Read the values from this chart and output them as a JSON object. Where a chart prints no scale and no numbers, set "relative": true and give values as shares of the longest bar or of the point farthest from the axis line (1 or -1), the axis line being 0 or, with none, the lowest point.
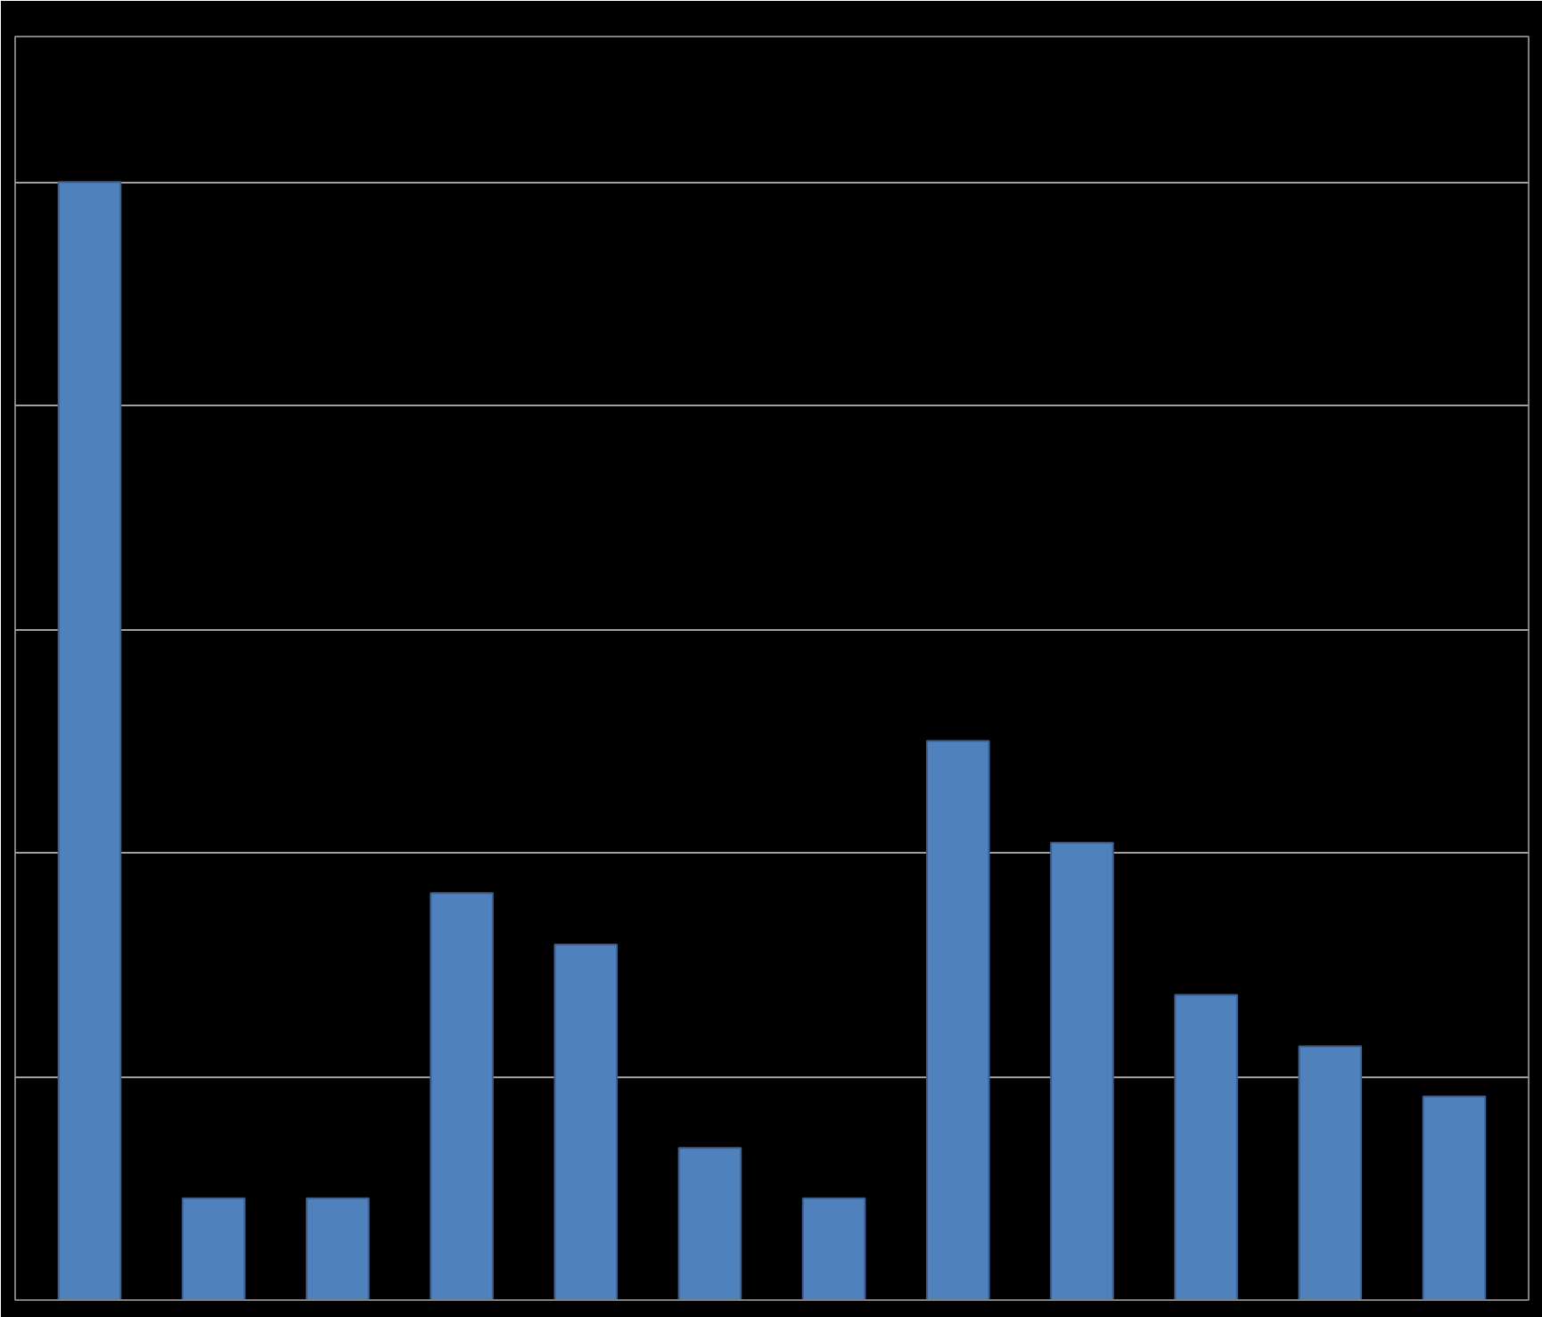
{
  "chart_data": {
    "type": "bar",
    "relative": true,
    "categories": [
      null,
      null,
      null,
      null,
      null,
      null,
      null,
      null,
      null,
      null,
      null,
      null
    ],
    "values": [
      1,
      0.091,
      0.091,
      0.364,
      0.318,
      0.136,
      0.091,
      0.5,
      0.409,
      0.273,
      0.227,
      0.182
    ],
    "color": "#4f81bd",
    "grid": "y"
  }
}
